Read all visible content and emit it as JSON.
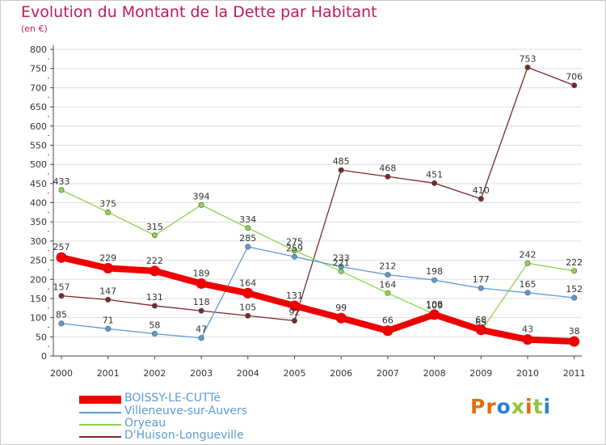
{
  "header": {
    "title": "Evolution du Montant de la Dette par Habitant",
    "subtitle": "(en €)"
  },
  "logo": {
    "text": "Proxiti"
  },
  "colors": {
    "title": "#c0185a",
    "axis": "#444444",
    "grid": "#dddddd",
    "tick_mark": "#d03050"
  },
  "chart_data": {
    "type": "line",
    "title": "Evolution du Montant de la Dette par Habitant",
    "subtitle": "(en €)",
    "xlabel": "",
    "ylabel": "",
    "x": [
      "2000",
      "2001",
      "2002",
      "2003",
      "2004",
      "2005",
      "2006",
      "2007",
      "2008",
      "2009",
      "2010",
      "2011"
    ],
    "ylim": [
      0,
      800
    ],
    "yticks": [
      0,
      50,
      100,
      150,
      200,
      250,
      300,
      350,
      400,
      450,
      500,
      550,
      600,
      650,
      700,
      750,
      800
    ],
    "grid": "horizontal",
    "legend": "bottom-left",
    "series": [
      {
        "name": "BOISSY-LE-CUTTé",
        "color": "#ee0000",
        "values": [
          257,
          229,
          222,
          189,
          164,
          131,
          99,
          66,
          108,
          68,
          43,
          38
        ],
        "labels": [
          "257",
          "229",
          "222",
          "189",
          "164",
          "131",
          "99",
          "66",
          "108",
          "68",
          "43",
          "38"
        ],
        "segments": [
          [
            0,
            11
          ]
        ]
      },
      {
        "name": "Villeneuve-sur-Auvers",
        "color": "#5b9bd5",
        "values": [
          85,
          71,
          58,
          47,
          285,
          259,
          233,
          212,
          198,
          177,
          165,
          152
        ],
        "labels": [
          "85",
          "71",
          "58",
          "47",
          "285",
          "259",
          "233",
          "212",
          "198",
          "177",
          "165",
          "152"
        ],
        "segments": [
          [
            0,
            11
          ]
        ]
      },
      {
        "name": "Oryeau",
        "color": "#8fd34f",
        "values": [
          433,
          375,
          315,
          394,
          334,
          275,
          221,
          164,
          109,
          65,
          242,
          222
        ],
        "labels": [
          "433",
          "375",
          "315",
          "394",
          "334",
          "275",
          "221",
          "164",
          "109",
          "65",
          "242",
          "222"
        ],
        "segments": [
          [
            0,
            11
          ]
        ]
      },
      {
        "name": "D'Huison-Longueville",
        "color": "#7a2828",
        "values": [
          157,
          147,
          131,
          118,
          105,
          92,
          485,
          468,
          451,
          410,
          753,
          706
        ],
        "labels": [
          "157",
          "147",
          "131",
          "118",
          "105",
          "92",
          "485",
          "468",
          "451",
          "410",
          "753",
          "706"
        ],
        "segments": [
          [
            0,
            5
          ],
          [
            5,
            11
          ]
        ]
      }
    ]
  }
}
